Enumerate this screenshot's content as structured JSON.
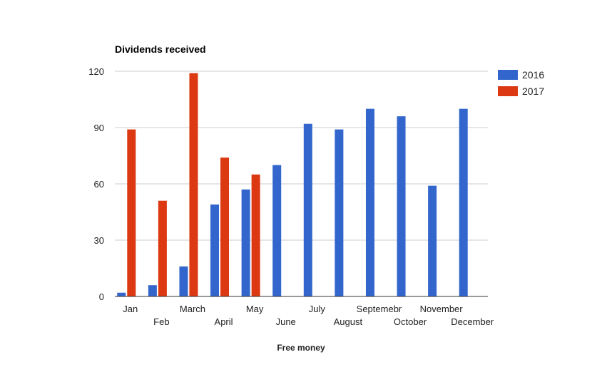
{
  "chart_data": {
    "type": "bar",
    "title": "Dividends received",
    "xlabel": "Free money",
    "ylabel": "",
    "ylim": [
      0,
      120
    ],
    "yticks": [
      0,
      30,
      60,
      90,
      120
    ],
    "grid": true,
    "legend_position": "right",
    "categories": [
      "Jan",
      "Feb",
      "March",
      "April",
      "May",
      "June",
      "July",
      "August",
      "Septemebr",
      "October",
      "November",
      "December"
    ],
    "series": [
      {
        "name": "2016",
        "color": "#3366cc",
        "values": [
          2,
          6,
          16,
          49,
          57,
          70,
          92,
          89,
          100,
          96,
          59,
          100
        ]
      },
      {
        "name": "2017",
        "color": "#dc3912",
        "values": [
          89,
          51,
          119,
          74,
          65,
          null,
          null,
          null,
          null,
          null,
          null,
          null
        ]
      }
    ]
  }
}
